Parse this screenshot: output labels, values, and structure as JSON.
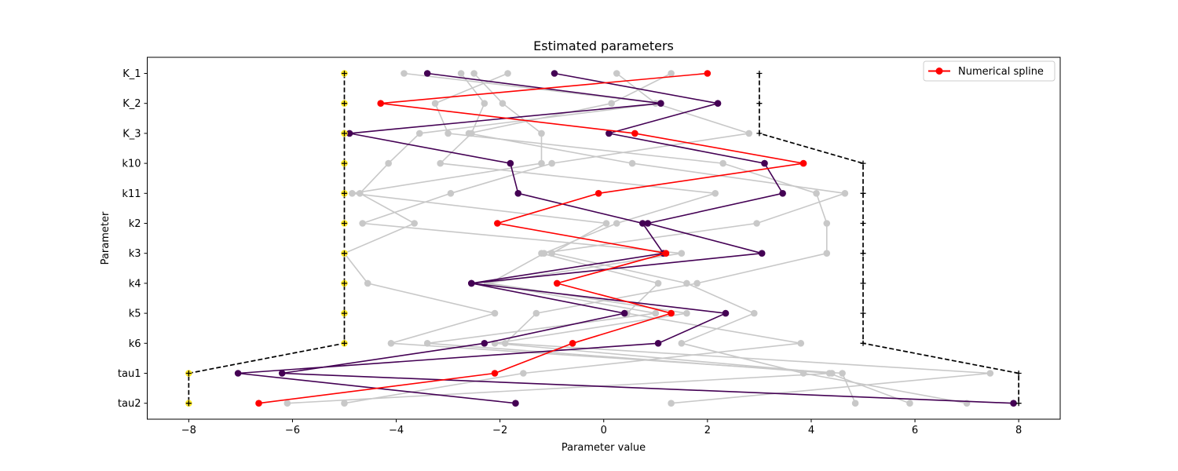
{
  "chart_data": {
    "type": "line",
    "title": "Estimated parameters",
    "xlabel": "Parameter value",
    "ylabel": "Parameter",
    "xlim": [
      -8.8,
      8.8
    ],
    "xticks": [
      -8,
      -6,
      -4,
      -2,
      0,
      2,
      4,
      6,
      8
    ],
    "categories": [
      "K_1",
      "K_2",
      "K_3",
      "k10",
      "k11",
      "k2",
      "k3",
      "k4",
      "k5",
      "k6",
      "tau1",
      "tau2"
    ],
    "grid": false,
    "legend": {
      "placement": "top-right",
      "entries": [
        "Numerical spline"
      ]
    },
    "colors": {
      "gray": "#c8c8c8",
      "purple": "#440154",
      "red": "#ff0000",
      "bounds": "#000000",
      "start": "#fde725"
    },
    "bounds": {
      "lower": [
        -5,
        -5,
        -5,
        -5,
        -5,
        -5,
        -5,
        -5,
        -5,
        -5,
        -8,
        -8
      ],
      "upper": [
        3,
        3,
        3,
        5,
        5,
        5,
        5,
        5,
        5,
        5,
        8,
        8
      ]
    },
    "start_points": [
      -5,
      -5,
      -5,
      -5,
      -5,
      -5,
      -5,
      -5,
      -5,
      -5,
      -8,
      -8
    ],
    "series": [
      {
        "name": "Numerical spline",
        "color": "red",
        "values": [
          2.0,
          -4.3,
          0.6,
          3.85,
          -0.1,
          -2.05,
          1.2,
          -0.9,
          1.3,
          -0.6,
          -2.1,
          -6.65
        ]
      },
      {
        "color": "purple",
        "values": [
          -0.95,
          2.2,
          0.1,
          3.1,
          3.45,
          0.85,
          3.05,
          -2.55,
          0.4,
          -2.3,
          -6.2,
          7.9
        ]
      },
      {
        "color": "purple",
        "values": [
          -3.4,
          1.1,
          -4.9,
          -1.8,
          -1.65,
          0.75,
          1.15,
          -2.55,
          2.35,
          1.05,
          -7.05,
          -1.7
        ]
      },
      {
        "color": "gray",
        "values": [
          -3.85,
          1.1,
          -3.55,
          -4.15,
          -4.7,
          -3.65,
          -5.0,
          -4.55,
          -2.1,
          -4.1,
          4.6,
          4.85
        ]
      },
      {
        "color": "gray",
        "values": [
          -2.75,
          -2.3,
          -2.55,
          -3.15,
          2.15,
          0.25,
          -1.15,
          -2.2,
          1.6,
          -2.1,
          4.4,
          -6.1
        ]
      },
      {
        "color": "gray",
        "values": [
          -2.5,
          -1.95,
          -1.2,
          -1.2,
          -4.85,
          0.05,
          -1.0,
          1.6,
          2.9,
          1.5,
          3.85,
          7.0
        ]
      },
      {
        "color": "gray",
        "values": [
          -1.85,
          -3.25,
          -3.0,
          2.3,
          4.1,
          4.3,
          4.3,
          1.8,
          -1.3,
          -1.9,
          7.45,
          1.3
        ]
      },
      {
        "color": "gray",
        "values": [
          0.25,
          1.0,
          2.8,
          -1.0,
          -2.95,
          -4.65,
          1.5,
          -2.25,
          1.0,
          -3.4,
          4.35,
          5.9
        ]
      },
      {
        "color": "gray",
        "values": [
          1.3,
          0.15,
          -2.6,
          0.55,
          4.65,
          2.95,
          -1.2,
          1.05,
          0.45,
          3.8,
          -1.55,
          -5.0
        ]
      }
    ]
  }
}
